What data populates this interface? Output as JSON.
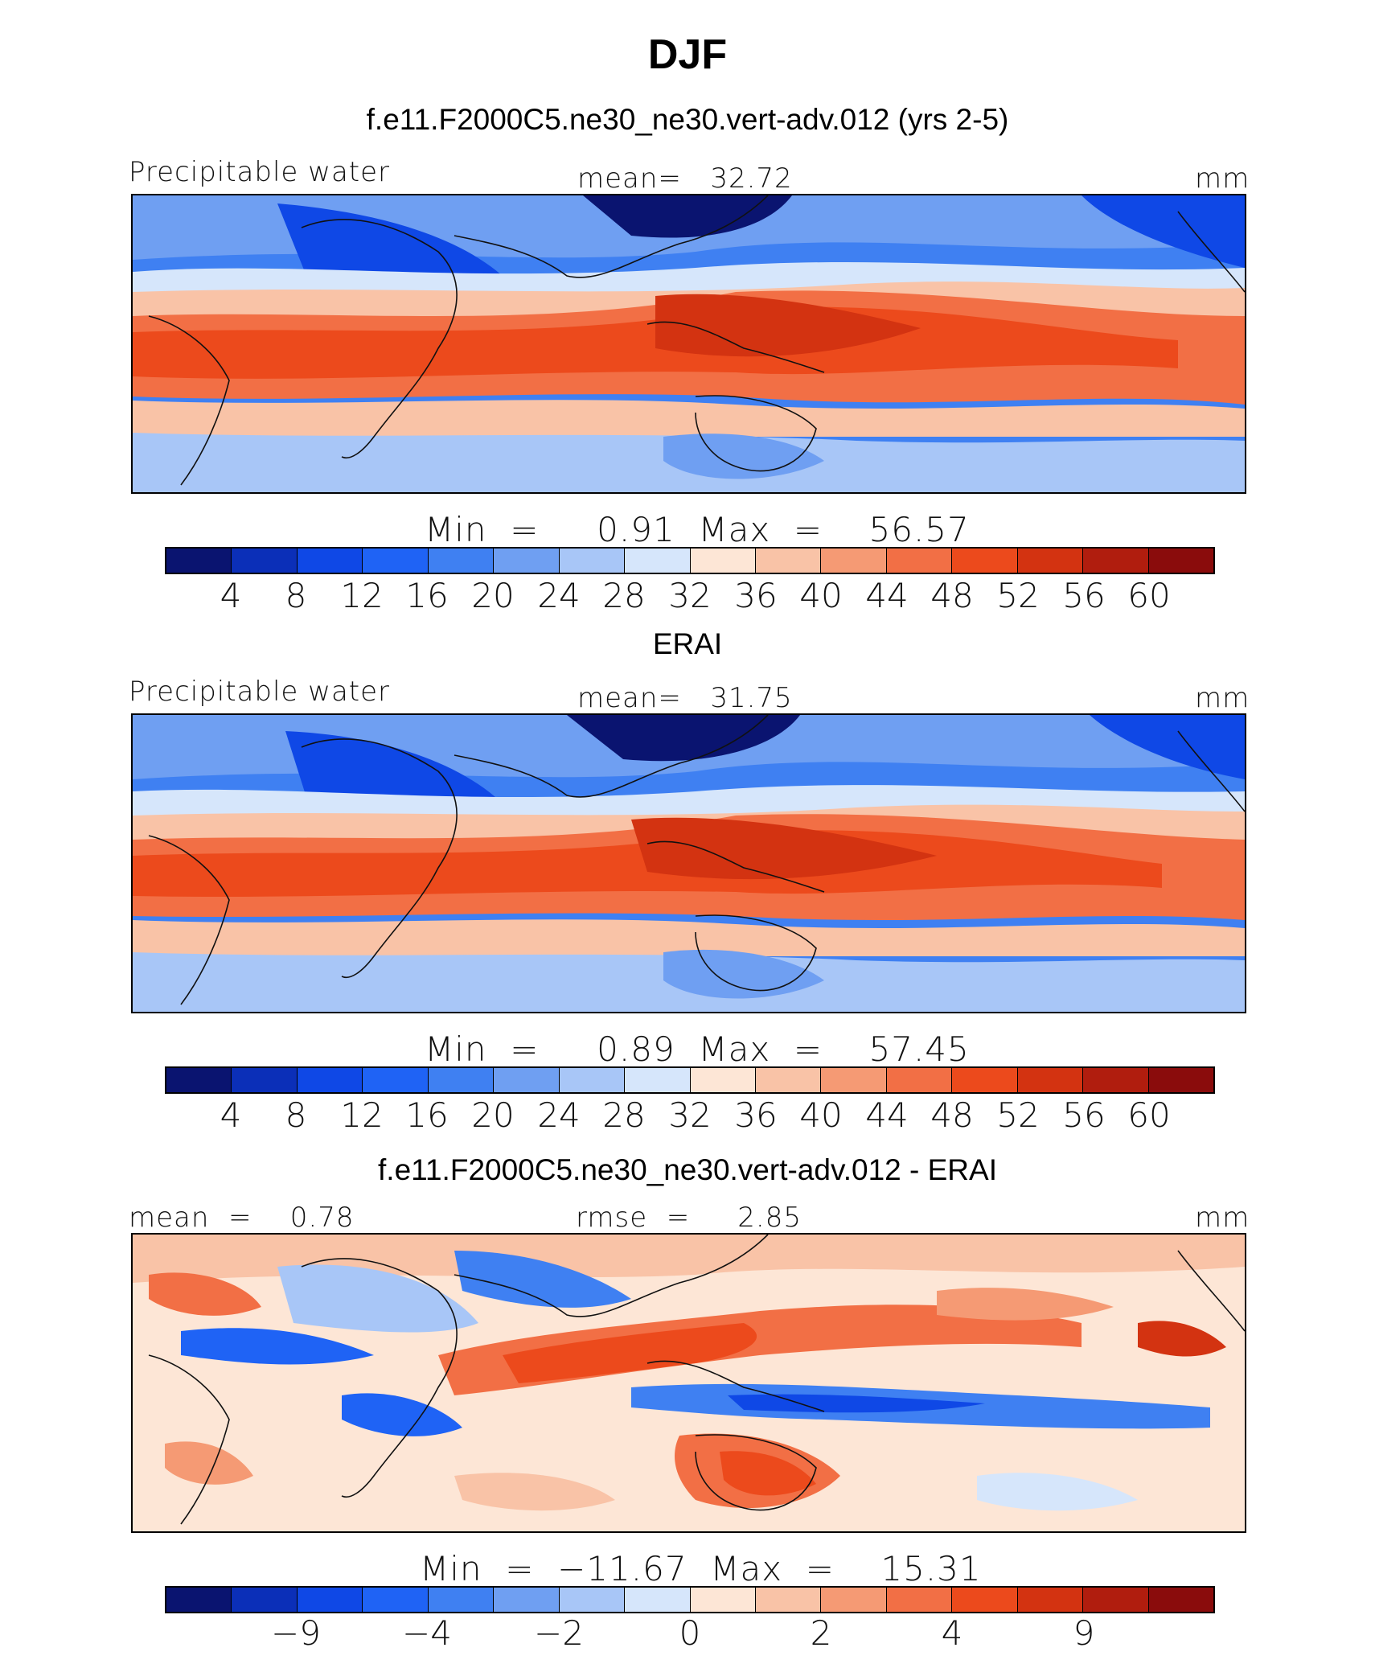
{
  "title": "DJF",
  "palette": [
    "#0a1470",
    "#0b2fb8",
    "#0f48e6",
    "#1f63f5",
    "#3f80f2",
    "#6f9ff2",
    "#a8c6f7",
    "#d6e6fb",
    "#fde6d6",
    "#f9c3a7",
    "#f59a74",
    "#f26f45",
    "#ec4a1c",
    "#d33311",
    "#b01d0e",
    "#8a0c0c"
  ],
  "panels": [
    {
      "title": "f.e11.F2000C5.ne30_ne30.vert-adv.012 (yrs 2-5)",
      "left_label": "Precipitable water",
      "center_label": "mean=   32.72",
      "right_label": "mm",
      "stats": "Min  =     0.91  Max  =    56.57",
      "ticks": [
        "4",
        "8",
        "12",
        "16",
        "20",
        "24",
        "28",
        "32",
        "36",
        "40",
        "44",
        "48",
        "52",
        "56",
        "60"
      ]
    },
    {
      "title": "ERAI",
      "left_label": "Precipitable water",
      "center_label": "mean=   31.75",
      "right_label": "mm",
      "stats": "Min  =     0.89  Max  =    57.45",
      "ticks": [
        "4",
        "8",
        "12",
        "16",
        "20",
        "24",
        "28",
        "32",
        "36",
        "40",
        "44",
        "48",
        "52",
        "56",
        "60"
      ]
    },
    {
      "title": "f.e11.F2000C5.ne30_ne30.vert-adv.012 - ERAI",
      "left_label": "mean  =    0.78",
      "center_label": "rmse  =     2.85",
      "right_label": "mm",
      "stats": "Min  =  −11.67  Max  =    15.31",
      "ticks": [
        "−9",
        "−4",
        "−2",
        "0",
        "2",
        "4",
        "9"
      ]
    }
  ]
}
